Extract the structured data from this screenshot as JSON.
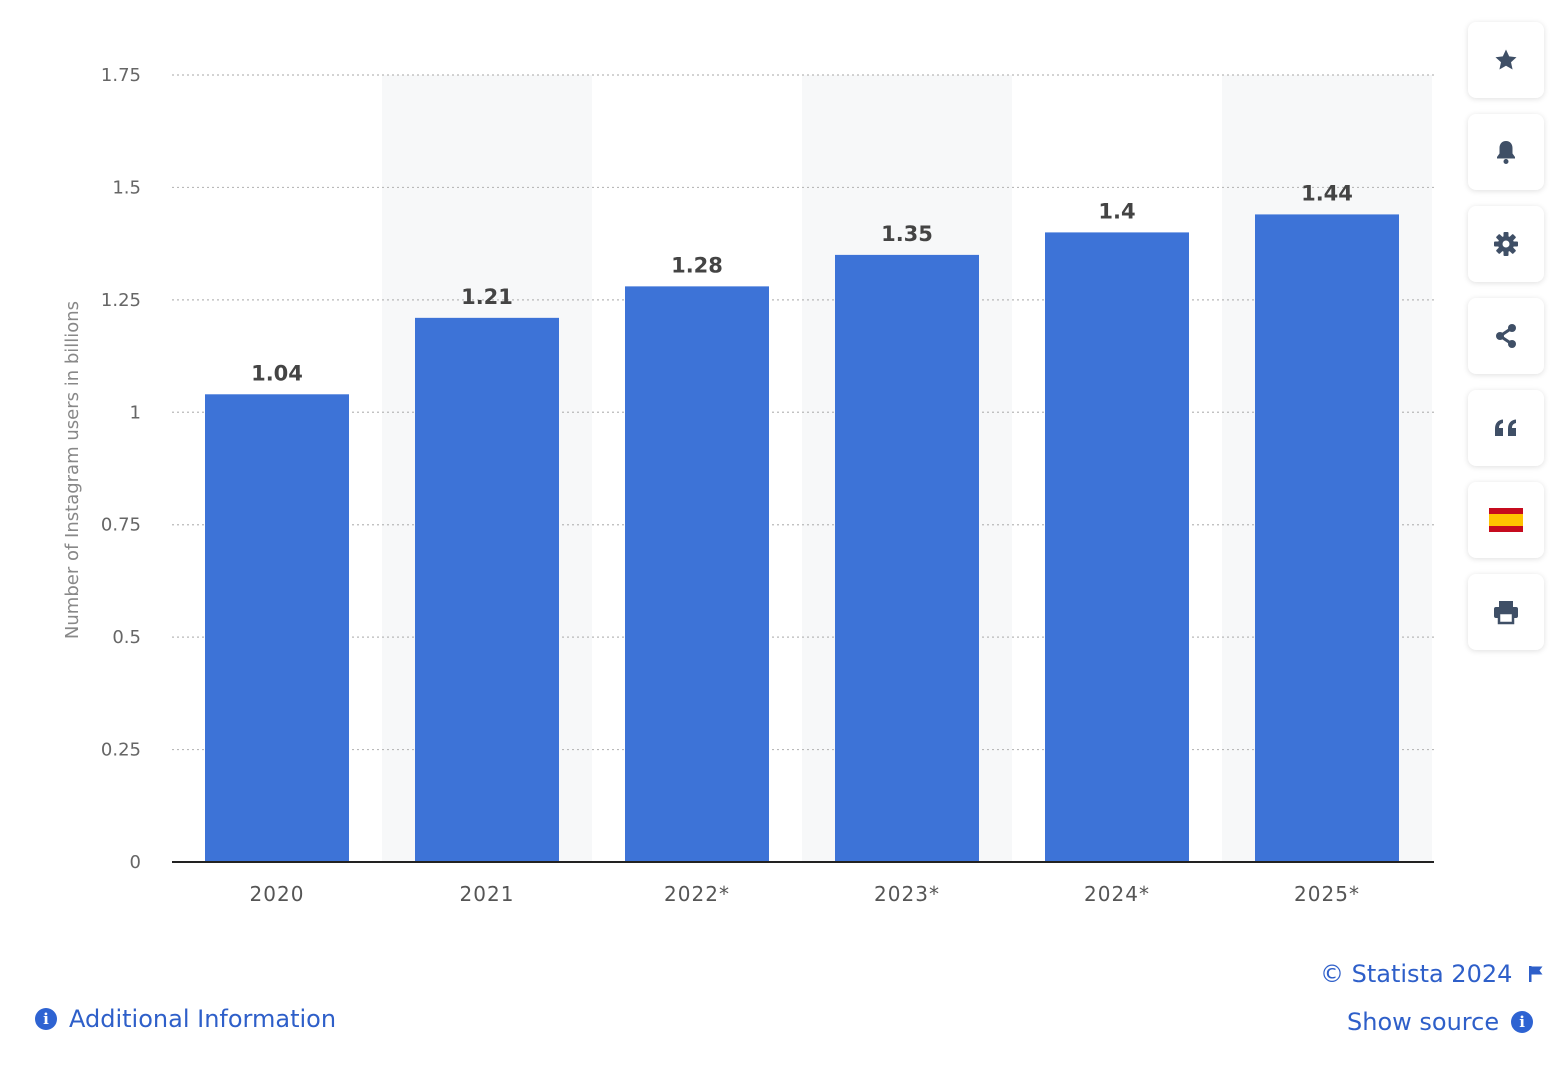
{
  "chart_data": {
    "type": "bar",
    "categories": [
      "2020",
      "2021",
      "2022*",
      "2023*",
      "2024*",
      "2025*"
    ],
    "values": [
      1.04,
      1.21,
      1.28,
      1.35,
      1.4,
      1.44
    ],
    "value_labels": [
      "1.04",
      "1.21",
      "1.28",
      "1.35",
      "1.4",
      "1.44"
    ],
    "ylabel": "Number of Instagram users in billions",
    "ylim": [
      0,
      1.75
    ],
    "yticks": [
      0,
      0.25,
      0.5,
      0.75,
      1,
      1.25,
      1.5,
      1.75
    ],
    "ytick_labels": [
      "0",
      "0.25",
      "0.5",
      "0.75",
      "1",
      "1.25",
      "1.5",
      "1.75"
    ],
    "grid": true,
    "bar_color": "#3d73d7"
  },
  "toolbar": {
    "items": [
      {
        "icon": "star-icon"
      },
      {
        "icon": "bell-icon"
      },
      {
        "icon": "gear-icon"
      },
      {
        "icon": "share-icon"
      },
      {
        "icon": "quote-icon"
      },
      {
        "icon": "spain-flag-icon"
      },
      {
        "icon": "print-icon"
      }
    ]
  },
  "footer": {
    "copyright": "© Statista 2024",
    "show_source": "Show source",
    "additional_info": "Additional Information"
  },
  "colors": {
    "accent": "#2e5fc9",
    "icon": "#3f4f66"
  }
}
